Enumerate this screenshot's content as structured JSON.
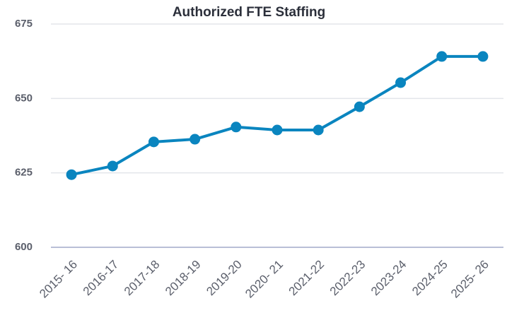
{
  "chart_data": {
    "type": "line",
    "title": "Authorized FTE Staffing",
    "categories": [
      "2015- 16",
      "2016-17",
      "2017-18",
      "2018-19",
      "2019-20",
      "2020- 21",
      "2021-22",
      "2022-23",
      "2023-24",
      "2024-25",
      "2025- 26"
    ],
    "values": [
      624.4,
      627.3,
      635.4,
      636.3,
      640.4,
      639.4,
      639.4,
      647.2,
      655.3,
      664.1,
      664.1
    ],
    "color": "#0a85bf",
    "ylim": [
      600,
      675
    ],
    "yticks": [
      600,
      625,
      650,
      675
    ],
    "grid": true
  }
}
